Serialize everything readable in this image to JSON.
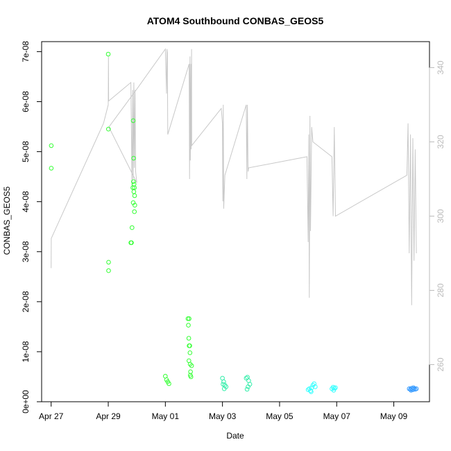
{
  "chart_data": {
    "type": "scatter",
    "title": "ATOM4 Southbound CONBAS_GEOS5",
    "xlabel": "Date",
    "ylabel": "CONBAS_GEOS5",
    "x_range": [
      "2016-04-26T16:00",
      "2016-05-10T06:00"
    ],
    "ylim": [
      0,
      7.2e-08
    ],
    "y2lim": [
      250,
      347
    ],
    "x_ticks": [
      {
        "date": "2016-04-27",
        "label": "Apr 27"
      },
      {
        "date": "2016-04-29",
        "label": "Apr 29"
      },
      {
        "date": "2016-05-01",
        "label": "May 01"
      },
      {
        "date": "2016-05-03",
        "label": "May 03"
      },
      {
        "date": "2016-05-05",
        "label": "May 05"
      },
      {
        "date": "2016-05-07",
        "label": "May 07"
      },
      {
        "date": "2016-05-09",
        "label": "May 09"
      }
    ],
    "y_ticks": [
      {
        "value": 0,
        "label": "0e+00"
      },
      {
        "value": 1e-08,
        "label": "1e-08"
      },
      {
        "value": 2e-08,
        "label": "2e-08"
      },
      {
        "value": 3e-08,
        "label": "3e-08"
      },
      {
        "value": 4e-08,
        "label": "4e-08"
      },
      {
        "value": 5e-08,
        "label": "5e-08"
      },
      {
        "value": 6e-08,
        "label": "6e-08"
      },
      {
        "value": 7e-08,
        "label": "7e-08"
      }
    ],
    "y2_ticks": [
      {
        "value": 260,
        "label": "260"
      },
      {
        "value": 280,
        "label": "280"
      },
      {
        "value": 300,
        "label": "300"
      },
      {
        "value": 320,
        "label": "320"
      },
      {
        "value": 340,
        "label": "340"
      }
    ],
    "grid": false,
    "legend": "none",
    "colors": {
      "points_early": "#33ff33",
      "points_mid": "#33eeaa",
      "points_late": "#33ffff",
      "points_last": "#3399ff",
      "line": "#c8c8c8"
    },
    "points": [
      {
        "x": "2016-04-27T00:05",
        "y": 5.12e-08,
        "c": "points_early"
      },
      {
        "x": "2016-04-27T00:05",
        "y": 4.67e-08,
        "c": "points_early"
      },
      {
        "x": "2016-04-29T00:00",
        "y": 6.95e-08,
        "c": "points_early"
      },
      {
        "x": "2016-04-29T00:10",
        "y": 5.45e-08,
        "c": "points_early"
      },
      {
        "x": "2016-04-29T00:15",
        "y": 2.79e-08,
        "c": "points_early"
      },
      {
        "x": "2016-04-29T00:15",
        "y": 2.62e-08,
        "c": "points_early"
      },
      {
        "x": "2016-04-29T19:00",
        "y": 3.18e-08,
        "c": "points_early"
      },
      {
        "x": "2016-04-29T19:30",
        "y": 3.18e-08,
        "c": "points_early"
      },
      {
        "x": "2016-04-29T20:00",
        "y": 3.48e-08,
        "c": "points_early"
      },
      {
        "x": "2016-04-29T21:00",
        "y": 5.62e-08,
        "c": "points_early"
      },
      {
        "x": "2016-04-29T21:20",
        "y": 4.87e-08,
        "c": "points_early"
      },
      {
        "x": "2016-04-29T20:40",
        "y": 4.28e-08,
        "c": "points_early"
      },
      {
        "x": "2016-04-29T21:10",
        "y": 4.4e-08,
        "c": "points_early"
      },
      {
        "x": "2016-04-29T21:40",
        "y": 4.35e-08,
        "c": "points_early"
      },
      {
        "x": "2016-04-29T22:00",
        "y": 4.28e-08,
        "c": "points_early"
      },
      {
        "x": "2016-04-29T21:30",
        "y": 4.2e-08,
        "c": "points_early"
      },
      {
        "x": "2016-04-29T22:10",
        "y": 4.12e-08,
        "c": "points_early"
      },
      {
        "x": "2016-04-29T21:00",
        "y": 3.98e-08,
        "c": "points_early"
      },
      {
        "x": "2016-04-29T22:20",
        "y": 3.93e-08,
        "c": "points_early"
      },
      {
        "x": "2016-04-29T22:00",
        "y": 3.8e-08,
        "c": "points_early"
      },
      {
        "x": "2016-05-01T00:00",
        "y": 5.1e-09,
        "c": "points_early"
      },
      {
        "x": "2016-05-01T01:00",
        "y": 4.4e-09,
        "c": "points_early"
      },
      {
        "x": "2016-05-01T02:00",
        "y": 4e-09,
        "c": "points_early"
      },
      {
        "x": "2016-05-01T03:00",
        "y": 3.6e-09,
        "c": "points_early"
      },
      {
        "x": "2016-05-01T19:00",
        "y": 1.66e-08,
        "c": "points_early"
      },
      {
        "x": "2016-05-01T20:00",
        "y": 1.66e-08,
        "c": "points_early"
      },
      {
        "x": "2016-05-01T19:20",
        "y": 1.53e-08,
        "c": "points_early"
      },
      {
        "x": "2016-05-01T19:40",
        "y": 1.27e-08,
        "c": "points_early"
      },
      {
        "x": "2016-05-01T20:00",
        "y": 1.12e-08,
        "c": "points_early"
      },
      {
        "x": "2016-05-01T20:30",
        "y": 1.12e-08,
        "c": "points_early"
      },
      {
        "x": "2016-05-01T20:40",
        "y": 9.8e-09,
        "c": "points_early"
      },
      {
        "x": "2016-05-01T19:50",
        "y": 8.2e-09,
        "c": "points_early"
      },
      {
        "x": "2016-05-01T20:50",
        "y": 7.5e-09,
        "c": "points_early"
      },
      {
        "x": "2016-05-01T22:00",
        "y": 7.2e-09,
        "c": "points_early"
      },
      {
        "x": "2016-05-01T21:10",
        "y": 6e-09,
        "c": "points_early"
      },
      {
        "x": "2016-05-01T21:00",
        "y": 5.3e-09,
        "c": "points_early"
      },
      {
        "x": "2016-05-01T21:30",
        "y": 5e-09,
        "c": "points_early"
      },
      {
        "x": "2016-05-03T00:00",
        "y": 4.7e-09,
        "c": "points_mid"
      },
      {
        "x": "2016-05-03T01:00",
        "y": 4e-09,
        "c": "points_mid"
      },
      {
        "x": "2016-05-03T00:30",
        "y": 3.5e-09,
        "c": "points_mid"
      },
      {
        "x": "2016-05-03T02:00",
        "y": 3.3e-09,
        "c": "points_mid"
      },
      {
        "x": "2016-05-03T03:00",
        "y": 3e-09,
        "c": "points_mid"
      },
      {
        "x": "2016-05-03T01:30",
        "y": 2.6e-09,
        "c": "points_mid"
      },
      {
        "x": "2016-05-03T20:00",
        "y": 4.7e-09,
        "c": "points_mid"
      },
      {
        "x": "2016-05-03T21:00",
        "y": 4.9e-09,
        "c": "points_mid"
      },
      {
        "x": "2016-05-03T22:00",
        "y": 4.2e-09,
        "c": "points_mid"
      },
      {
        "x": "2016-05-03T23:00",
        "y": 3.5e-09,
        "c": "points_mid"
      },
      {
        "x": "2016-05-03T21:30",
        "y": 3e-09,
        "c": "points_mid"
      },
      {
        "x": "2016-05-03T20:40",
        "y": 2.5e-09,
        "c": "points_mid"
      },
      {
        "x": "2016-05-06T00:00",
        "y": 2.4e-09,
        "c": "points_late"
      },
      {
        "x": "2016-05-06T01:00",
        "y": 2.6e-09,
        "c": "points_late"
      },
      {
        "x": "2016-05-06T02:00",
        "y": 2.2e-09,
        "c": "points_late"
      },
      {
        "x": "2016-05-06T03:00",
        "y": 2.8e-09,
        "c": "points_late"
      },
      {
        "x": "2016-05-06T04:00",
        "y": 3.3e-09,
        "c": "points_late"
      },
      {
        "x": "2016-05-06T05:00",
        "y": 3.6e-09,
        "c": "points_late"
      },
      {
        "x": "2016-05-06T06:00",
        "y": 3e-09,
        "c": "points_late"
      },
      {
        "x": "2016-05-06T02:30",
        "y": 2e-09,
        "c": "points_late"
      },
      {
        "x": "2016-05-06T20:00",
        "y": 2.6e-09,
        "c": "points_late"
      },
      {
        "x": "2016-05-06T21:00",
        "y": 2.9e-09,
        "c": "points_late"
      },
      {
        "x": "2016-05-06T22:00",
        "y": 2.7e-09,
        "c": "points_late"
      },
      {
        "x": "2016-05-06T23:00",
        "y": 2.8e-09,
        "c": "points_late"
      },
      {
        "x": "2016-05-06T21:30",
        "y": 2.3e-09,
        "c": "points_late"
      },
      {
        "x": "2016-05-09T13:00",
        "y": 2.6e-09,
        "c": "points_last"
      },
      {
        "x": "2016-05-09T14:00",
        "y": 2.5e-09,
        "c": "points_last"
      },
      {
        "x": "2016-05-09T15:00",
        "y": 2.7e-09,
        "c": "points_last"
      },
      {
        "x": "2016-05-09T16:00",
        "y": 2.4e-09,
        "c": "points_last"
      },
      {
        "x": "2016-05-09T17:00",
        "y": 2.6e-09,
        "c": "points_last"
      },
      {
        "x": "2016-05-09T18:00",
        "y": 2.5e-09,
        "c": "points_last"
      },
      {
        "x": "2016-05-09T19:00",
        "y": 2.6e-09,
        "c": "points_last"
      },
      {
        "x": "2016-05-09T14:30",
        "y": 2.3e-09,
        "c": "points_last"
      },
      {
        "x": "2016-05-09T16:30",
        "y": 2.8e-09,
        "c": "points_last"
      }
    ],
    "line_y2": [
      [
        "2016-04-27T00:00",
        286
      ],
      [
        "2016-04-27T00:05",
        294
      ],
      [
        "2016-04-28T20:00",
        325
      ],
      [
        "2016-04-29T00:00",
        330
      ],
      [
        "2016-04-29T00:10",
        343
      ],
      [
        "2016-04-29T00:20",
        331
      ],
      [
        "2016-04-29T19:00",
        336
      ],
      [
        "2016-04-29T20:00",
        308
      ],
      [
        "2016-04-29T20:30",
        334
      ],
      [
        "2016-04-29T21:00",
        310
      ],
      [
        "2016-04-29T21:30",
        336
      ],
      [
        "2016-04-29T22:00",
        313
      ],
      [
        "2016-04-29T22:30",
        334
      ],
      [
        "2016-04-29T23:00",
        312
      ],
      [
        "2016-04-30T00:00",
        309
      ],
      [
        "2016-04-29T00:30",
        324
      ],
      [
        "2016-04-29T23:30",
        334
      ],
      [
        "2016-05-01T00:00",
        345
      ],
      [
        "2016-05-01T01:00",
        333
      ],
      [
        "2016-05-01T01:20",
        345
      ],
      [
        "2016-05-01T01:40",
        344
      ],
      [
        "2016-05-01T02:00",
        322
      ],
      [
        "2016-05-01T20:00",
        341
      ],
      [
        "2016-05-01T20:20",
        310
      ],
      [
        "2016-05-01T20:40",
        343
      ],
      [
        "2016-05-01T21:00",
        315
      ],
      [
        "2016-05-01T21:30",
        341
      ],
      [
        "2016-05-01T21:40",
        318
      ],
      [
        "2016-05-01T22:00",
        345
      ],
      [
        "2016-05-01T22:10",
        319
      ],
      [
        "2016-05-02T23:00",
        329
      ],
      [
        "2016-05-03T00:00",
        325
      ],
      [
        "2016-05-03T00:20",
        304
      ],
      [
        "2016-05-03T00:40",
        330
      ],
      [
        "2016-05-03T01:00",
        302
      ],
      [
        "2016-05-03T02:00",
        311
      ],
      [
        "2016-05-03T20:00",
        330
      ],
      [
        "2016-05-03T20:30",
        310
      ],
      [
        "2016-05-03T21:00",
        330
      ],
      [
        "2016-05-03T21:30",
        312
      ],
      [
        "2016-05-03T22:00",
        313
      ],
      [
        "2016-05-05T23:00",
        316
      ],
      [
        "2016-05-06T00:00",
        293
      ],
      [
        "2016-05-06T00:30",
        322
      ],
      [
        "2016-05-06T01:00",
        278
      ],
      [
        "2016-05-06T01:30",
        327
      ],
      [
        "2016-05-06T02:00",
        296
      ],
      [
        "2016-05-06T03:00",
        324
      ],
      [
        "2016-05-06T04:00",
        320
      ],
      [
        "2016-05-06T20:00",
        316
      ],
      [
        "2016-05-06T21:00",
        300
      ],
      [
        "2016-05-06T22:00",
        324
      ],
      [
        "2016-05-06T23:00",
        300
      ],
      [
        "2016-05-09T11:00",
        311
      ],
      [
        "2016-05-09T12:00",
        325
      ],
      [
        "2016-05-09T13:00",
        290
      ],
      [
        "2016-05-09T14:00",
        322
      ],
      [
        "2016-05-09T15:00",
        276
      ],
      [
        "2016-05-09T16:00",
        321
      ],
      [
        "2016-05-09T17:00",
        288
      ],
      [
        "2016-05-09T18:00",
        318
      ],
      [
        "2016-05-09T19:00",
        290
      ]
    ]
  }
}
